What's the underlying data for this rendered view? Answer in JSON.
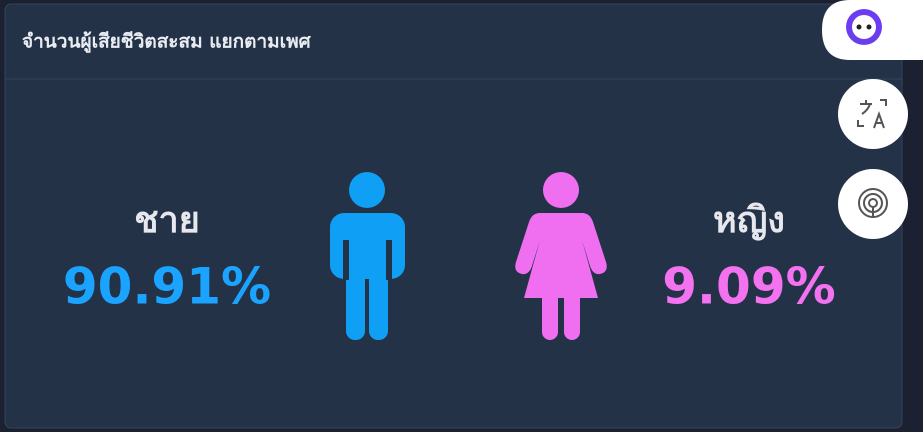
{
  "header": {
    "title": "จำนวนผู้เสียชีวิตสะสม แยกตามเพศ"
  },
  "male": {
    "label": "ชาย",
    "value": "90.91%"
  },
  "female": {
    "label": "หญิง",
    "value": "9.09%"
  }
}
